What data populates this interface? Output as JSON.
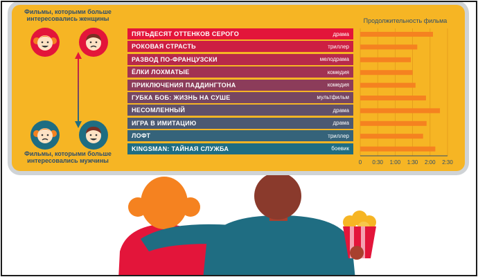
{
  "captions": {
    "women": "Фильмы, которыми больше интересовались женщины",
    "men": "Фильмы, которыми больше интересовались мужчины"
  },
  "colors": {
    "board": "#f6b524",
    "bar": "#f58220",
    "row_top": "#e3153a",
    "row_bottom": "#1f6d82",
    "text_blue": "#2e4e6b"
  },
  "icons": [
    "happy-woman-icon",
    "sad-man-icon",
    "sad-woman-icon",
    "happy-man-icon",
    "double-arrow-icon",
    "popcorn-icon"
  ],
  "chart_data": {
    "type": "bar",
    "orientation": "horizontal",
    "title": "Продолжительность фильма",
    "xlabel": "",
    "ylabel": "",
    "categories": [
      "ПЯТЬДЕСЯТ ОТТЕНКОВ СЕРОГО",
      "РОКОВАЯ СТРАСТЬ",
      "РАЗВОД ПО-ФРАНЦУЗСКИ",
      "ЁЛКИ ЛОХМАТЫЕ",
      "ПРИКЛЮЧЕНИЯ ПАДДИНГТОНА",
      "ГУБКА БОБ: ЖИЗНЬ НА СУШЕ",
      "НЕСОМЛЕННЫЙ",
      "ИГРА В ИМИТАЦИЮ",
      "ЛОФТ",
      "KINGSMAN: ТАЙНАЯ СЛУЖБА"
    ],
    "genres": [
      "драма",
      "триллер",
      "мелодрама",
      "комедия",
      "комедия",
      "мультфильм",
      "драма",
      "драма",
      "триллер",
      "боевик"
    ],
    "values_minutes": [
      125,
      98,
      87,
      90,
      95,
      113,
      137,
      114,
      108,
      129
    ],
    "xticks": [
      "0",
      "0:30",
      "1:00",
      "1:30",
      "2:00",
      "2:30"
    ],
    "xtick_values": [
      0,
      30,
      60,
      90,
      120,
      150
    ],
    "xlim": [
      0,
      150
    ],
    "grid": true
  }
}
